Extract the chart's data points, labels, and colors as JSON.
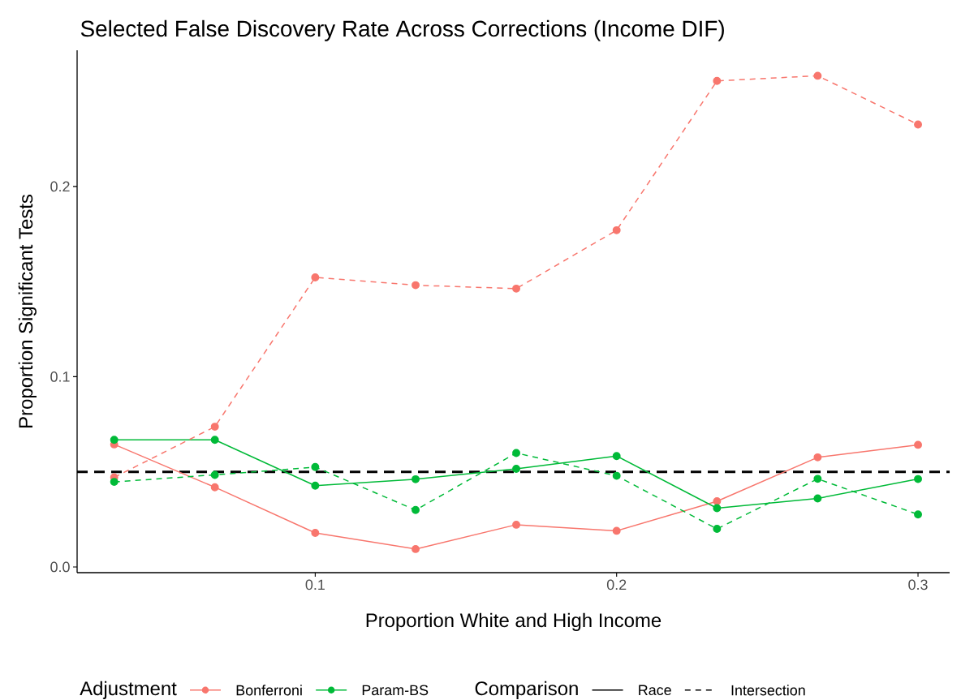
{
  "chart_data": {
    "type": "line",
    "title": "Selected False Discovery Rate Across Corrections (Income DIF)",
    "xlabel": "Proportion White and High Income",
    "ylabel": "Proportion Significant Tests",
    "x": [
      0.0333,
      0.0667,
      0.1,
      0.1333,
      0.1667,
      0.2,
      0.2333,
      0.2667,
      0.3
    ],
    "xlim": [
      0.021,
      0.3105
    ],
    "xticks": [
      0.1,
      0.2,
      0.3
    ],
    "ylim": [
      -0.003,
      0.2716
    ],
    "yticks": [
      {
        "value": 0,
        "label": "0.0"
      },
      0.1,
      0.2
    ],
    "grid": false,
    "legend": "bottom",
    "marker": "circle",
    "legend_title": "Adjustment",
    "annotations": [
      "Comparison",
      "Race",
      "Intersection"
    ],
    "ref_lines": [
      {
        "axis": "y",
        "value": 0.05,
        "color": "#000000",
        "line_style": "dashed"
      }
    ],
    "series": [
      {
        "name": "Bonferroni",
        "color": "#f8766d",
        "line_style": "solid",
        "values": [
          0.0644,
          0.0419,
          0.0179,
          0.0094,
          0.0222,
          0.019,
          0.0345,
          0.0576,
          0.0642
        ]
      },
      {
        "name": "Param-BS",
        "color": "#00ba38",
        "line_style": "solid",
        "values": [
          0.0668,
          0.0668,
          0.0427,
          0.0461,
          0.0516,
          0.0583,
          0.0309,
          0.036,
          0.0462
        ]
      },
      {
        "color": "#f8766d",
        "line_style": "dashed",
        "values": [
          0.0471,
          0.0737,
          0.1522,
          0.1481,
          0.1463,
          0.177,
          0.2555,
          0.2582,
          0.2326
        ]
      },
      {
        "color": "#00ba38",
        "line_style": "dashed",
        "values": [
          0.0447,
          0.0484,
          0.0525,
          0.0299,
          0.0599,
          0.0479,
          0.02,
          0.0463,
          0.0276
        ]
      }
    ]
  }
}
